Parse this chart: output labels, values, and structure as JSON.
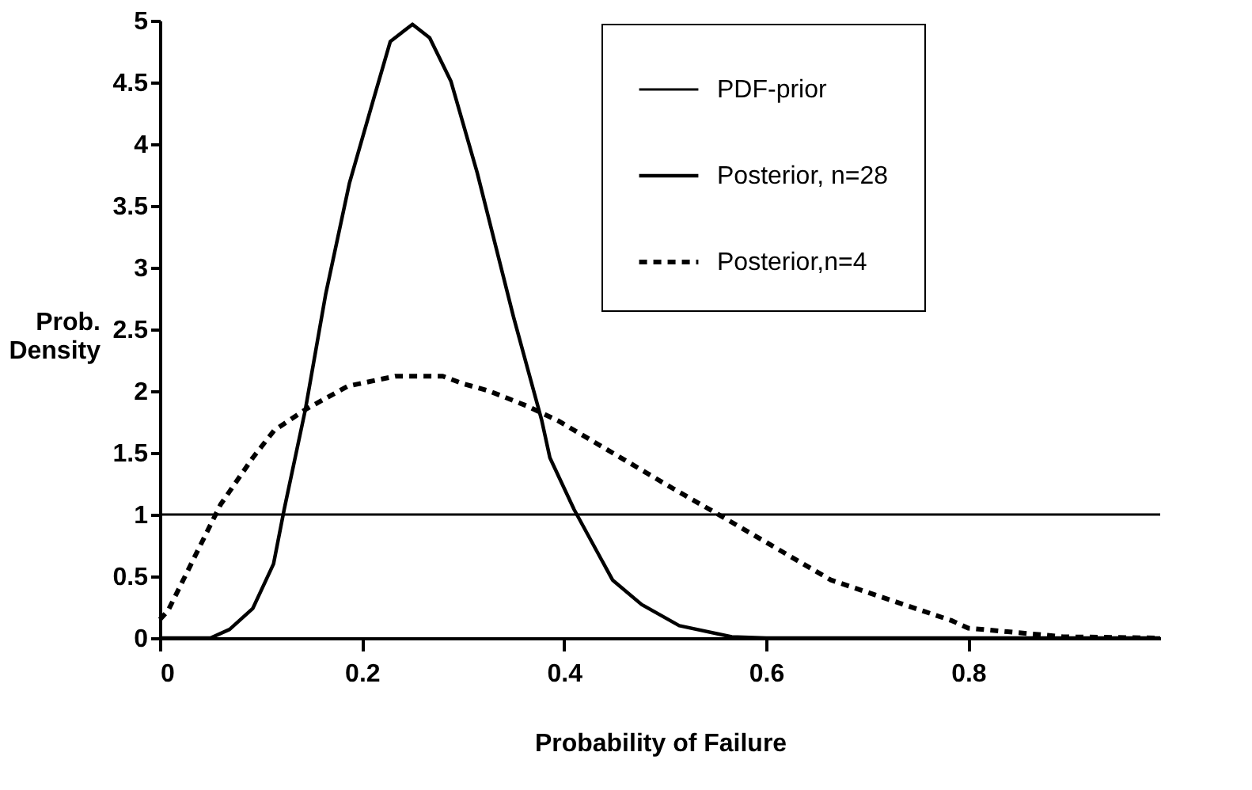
{
  "chart_data": {
    "type": "line",
    "xlabel": "Probability of Failure",
    "ylabel": "Prob.\nDensity",
    "xlim": [
      0,
      0.99
    ],
    "xticks": [
      0,
      0.2,
      0.4,
      0.6,
      0.8
    ],
    "ylim": [
      0,
      5
    ],
    "yticks": [
      0,
      0.5,
      1,
      1.5,
      2,
      2.5,
      3,
      3.5,
      4,
      4.5,
      5
    ],
    "grid": false,
    "legend": "top right",
    "marker": "none",
    "series": [
      {
        "name": "PDF-prior",
        "color": "#000000",
        "line_style": "solid",
        "x": [
          0,
          0.99
        ],
        "values": [
          1,
          1
        ]
      },
      {
        "name": "Posterior, n=28",
        "color": "#000000",
        "line_style": "solid",
        "x": [
          0,
          0.05,
          0.069,
          0.092,
          0.1125,
          0.123,
          0.144,
          0.164,
          0.1875,
          0.211,
          0.228,
          0.25,
          0.267,
          0.288,
          0.314,
          0.35,
          0.378,
          0.386,
          0.41,
          0.448,
          0.477,
          0.514,
          0.566,
          0.6,
          0.99
        ],
        "values": [
          0,
          0,
          0.07,
          0.24,
          0.6,
          1.04,
          1.85,
          2.78,
          3.68,
          4.35,
          4.83,
          4.97,
          4.86,
          4.51,
          3.77,
          2.6,
          1.76,
          1.46,
          1.04,
          0.47,
          0.27,
          0.1,
          0.01,
          0,
          0
        ]
      },
      {
        "name": "Posterior,n=4",
        "color": "#000000",
        "line_style": "dashed",
        "x": [
          0,
          0.008,
          0.034,
          0.06,
          0.092,
          0.113,
          0.144,
          0.186,
          0.233,
          0.28,
          0.3,
          0.326,
          0.363,
          0.394,
          0.508,
          0.555,
          0.664,
          0.784,
          0.8,
          0.894,
          0.99
        ],
        "values": [
          0.15,
          0.22,
          0.65,
          1.08,
          1.46,
          1.68,
          1.85,
          2.04,
          2.12,
          2.12,
          2.06,
          2.0,
          1.88,
          1.76,
          1.21,
          0.99,
          0.47,
          0.14,
          0.08,
          0.01,
          0
        ]
      }
    ]
  }
}
